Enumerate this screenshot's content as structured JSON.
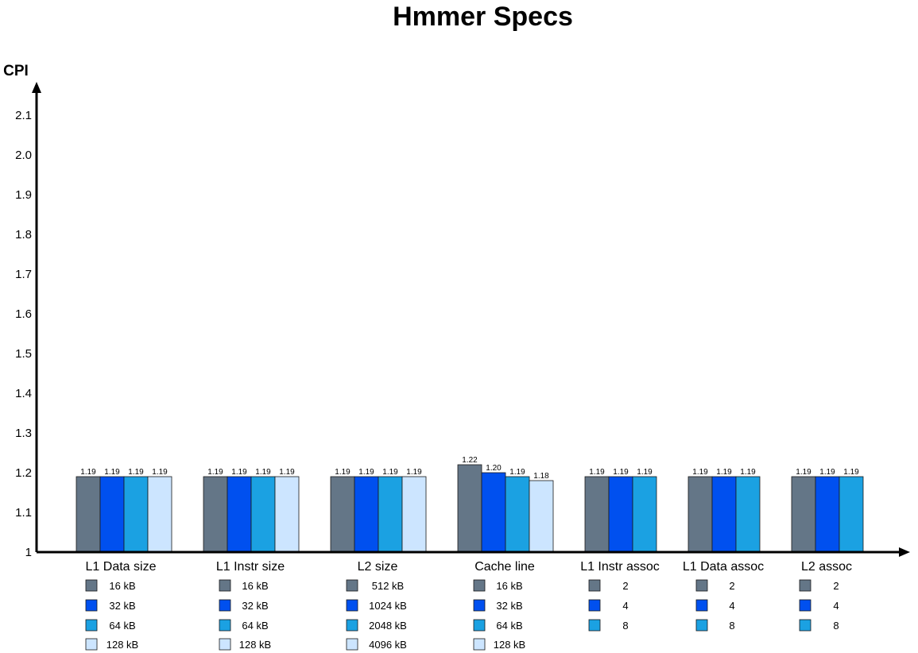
{
  "chart_data": {
    "type": "bar",
    "title": "Hmmer Specs",
    "ylabel": "CPI",
    "xlabel": "",
    "ylim": [
      1,
      2.1
    ],
    "yticks": [
      "1",
      "1.1",
      "1.2",
      "1.3",
      "1.4",
      "1.5",
      "1.6",
      "1.7",
      "1.8",
      "1.9",
      "2.0",
      "2.1"
    ],
    "colors": [
      "#647687",
      "#0050ef",
      "#1ba1e2",
      "#cce5ff"
    ],
    "groups": [
      {
        "category": "L1 Data size",
        "labels": [
          "16 kB",
          "32 kB",
          "64 kB",
          "128 kB"
        ],
        "values": [
          1.19,
          1.19,
          1.19,
          1.19
        ],
        "value_labels": [
          "1.19",
          "1.19",
          "1.19",
          "1.19"
        ]
      },
      {
        "category": "L1 Instr size",
        "labels": [
          "16 kB",
          "32 kB",
          "64 kB",
          "128 kB"
        ],
        "values": [
          1.19,
          1.19,
          1.19,
          1.19
        ],
        "value_labels": [
          "1.19",
          "1.19",
          "1.19",
          "1.19"
        ]
      },
      {
        "category": "L2 size",
        "labels": [
          "512 kB",
          "1024 kB",
          "2048 kB",
          "4096 kB"
        ],
        "values": [
          1.19,
          1.19,
          1.19,
          1.19
        ],
        "value_labels": [
          "1.19",
          "1.19",
          "1.19",
          "1.19"
        ]
      },
      {
        "category": "Cache line",
        "labels": [
          "16 kB",
          "32 kB",
          "64 kB",
          "128 kB"
        ],
        "values": [
          1.22,
          1.2,
          1.19,
          1.18
        ],
        "value_labels": [
          "1.22",
          "1.20",
          "1.19",
          "1.18"
        ]
      },
      {
        "category": "L1 Instr assoc",
        "labels": [
          "2",
          "4",
          "8"
        ],
        "values": [
          1.19,
          1.19,
          1.19
        ],
        "value_labels": [
          "1.19",
          "1.19",
          "1.19"
        ]
      },
      {
        "category": "L1 Data assoc",
        "labels": [
          "2",
          "4",
          "8"
        ],
        "values": [
          1.19,
          1.19,
          1.19
        ],
        "value_labels": [
          "1.19",
          "1.19",
          "1.19"
        ]
      },
      {
        "category": "L2 assoc",
        "labels": [
          "2",
          "4",
          "8"
        ],
        "values": [
          1.19,
          1.19,
          1.19
        ],
        "value_labels": [
          "1.19",
          "1.19",
          "1.19"
        ]
      }
    ]
  }
}
